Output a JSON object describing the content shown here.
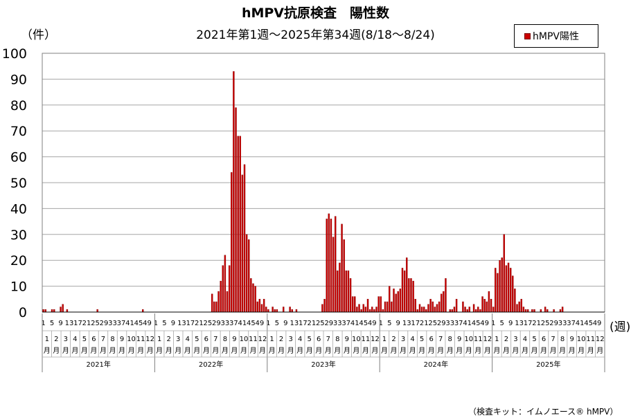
{
  "title": "hMPV抗原検査　陽性数",
  "subtitle": "2021年第1週～2025年第34週(8/18～8/24)",
  "y_unit_label": "（件）",
  "x_unit_label": "(週)",
  "footnote": "（検査キット：イムノエース® hMPV）",
  "colors": {
    "bar_fill": "#cc0000",
    "bar_edge": "#7a0000",
    "grid": "#a6a6a6"
  },
  "chart_data": {
    "type": "bar",
    "title": "hMPV抗原検査　陽性数",
    "subtitle": "2021年第1週～2025年第34週(8/18～8/24)",
    "ylabel": "（件）",
    "xlabel": "(週)",
    "ylim": [
      0,
      100
    ],
    "yticks": [
      0,
      10,
      20,
      30,
      40,
      50,
      60,
      70,
      80,
      90,
      100
    ],
    "grid": true,
    "legend_position": "top-right",
    "week_tick_labels": [
      "1",
      "5",
      "9",
      "13",
      "17",
      "21",
      "25",
      "29",
      "33",
      "37",
      "41",
      "45",
      "49"
    ],
    "month_labels": [
      "1月",
      "2月",
      "3月",
      "4月",
      "5月",
      "6月",
      "7月",
      "8月",
      "9月",
      "10月",
      "11月",
      "12月"
    ],
    "years": [
      {
        "label": "2021年",
        "weeks": 52
      },
      {
        "label": "2022年",
        "weeks": 52
      },
      {
        "label": "2023年",
        "weeks": 52
      },
      {
        "label": "2024年",
        "weeks": 52
      },
      {
        "label": "2025年",
        "weeks": 52
      }
    ],
    "series": [
      {
        "name": "hMPV陽性",
        "values": [
          1,
          1,
          0,
          0,
          1,
          1,
          0,
          0,
          2,
          3,
          0,
          1,
          0,
          0,
          0,
          0,
          0,
          0,
          0,
          0,
          0,
          0,
          0,
          0,
          0,
          1,
          0,
          0,
          0,
          0,
          0,
          0,
          0,
          0,
          0,
          0,
          0,
          0,
          0,
          0,
          0,
          0,
          0,
          0,
          0,
          0,
          1,
          0,
          0,
          0,
          0,
          0,
          0,
          0,
          0,
          0,
          0,
          0,
          0,
          0,
          0,
          0,
          0,
          0,
          0,
          0,
          0,
          0,
          0,
          0,
          0,
          0,
          0,
          0,
          0,
          0,
          0,
          0,
          7,
          4,
          4,
          8,
          12,
          18,
          22,
          8,
          18,
          54,
          93,
          79,
          68,
          68,
          53,
          57,
          30,
          28,
          13,
          11,
          10,
          4,
          5,
          3,
          5,
          2,
          1,
          0,
          2,
          1,
          1,
          0,
          0,
          2,
          0,
          0,
          2,
          1,
          0,
          1,
          0,
          0,
          0,
          0,
          0,
          0,
          0,
          0,
          0,
          0,
          0,
          3,
          5,
          36,
          38,
          36,
          29,
          37,
          16,
          19,
          34,
          28,
          16,
          16,
          13,
          6,
          6,
          2,
          3,
          1,
          3,
          2,
          5,
          1,
          2,
          1,
          2,
          6,
          6,
          1,
          4,
          4,
          10,
          4,
          9,
          7,
          8,
          9,
          17,
          16,
          21,
          13,
          13,
          12,
          5,
          1,
          3,
          2,
          2,
          1,
          3,
          5,
          4,
          2,
          3,
          4,
          7,
          8,
          13,
          0,
          1,
          1,
          2,
          5,
          0,
          0,
          4,
          2,
          1,
          2,
          0,
          3,
          1,
          2,
          1,
          6,
          5,
          4,
          8,
          5,
          2,
          17,
          15,
          20,
          21,
          30,
          18,
          19,
          17,
          14,
          9,
          3,
          4,
          5,
          2,
          1,
          1,
          0,
          1,
          1,
          0,
          0,
          1,
          0,
          2,
          1,
          0,
          0,
          1,
          0,
          0,
          1,
          2,
          0,
          0,
          0,
          0,
          0,
          0,
          0,
          0,
          0,
          0,
          0,
          0,
          0,
          0,
          0,
          0,
          0
        ]
      }
    ]
  }
}
